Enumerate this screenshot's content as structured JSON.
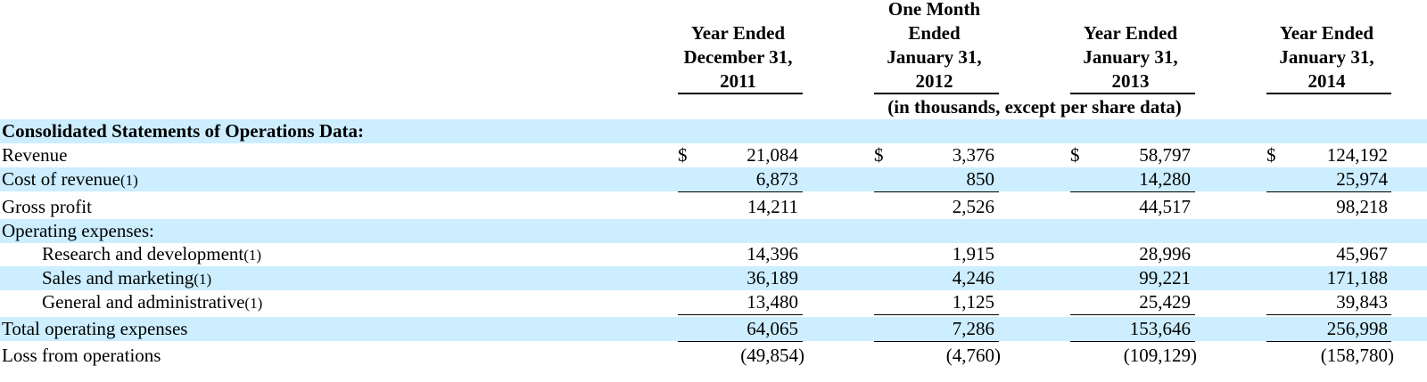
{
  "header": {
    "columns": [
      {
        "lines": [
          "Year Ended",
          "December 31,",
          "2011"
        ]
      },
      {
        "lines": [
          "One Month",
          "Ended",
          "January 31,",
          "2012"
        ]
      },
      {
        "lines": [
          "Year Ended",
          "January 31,",
          "2013"
        ]
      },
      {
        "lines": [
          "Year Ended",
          "January 31,",
          "2014"
        ]
      }
    ],
    "units_note": "(in thousands, except per share data)"
  },
  "table": {
    "section_title": "Consolidated Statements of Operations Data:",
    "currency_symbol": "$",
    "rows": [
      {
        "label": "Revenue",
        "footnote": "",
        "values": [
          "21,084",
          "3,376",
          "58,797",
          "124,192"
        ]
      },
      {
        "label": "Cost of revenue",
        "footnote": "(1)",
        "values": [
          "6,873",
          "850",
          "14,280",
          "25,974"
        ]
      },
      {
        "label": "Gross profit",
        "footnote": "",
        "values": [
          "14,211",
          "2,526",
          "44,517",
          "98,218"
        ]
      },
      {
        "label": "Operating expenses:",
        "footnote": "",
        "values": [
          "",
          "",
          "",
          ""
        ]
      },
      {
        "label": "Research and development",
        "footnote": "(1)",
        "values": [
          "14,396",
          "1,915",
          "28,996",
          "45,967"
        ]
      },
      {
        "label": "Sales and marketing",
        "footnote": "(1)",
        "values": [
          "36,189",
          "4,246",
          "99,221",
          "171,188"
        ]
      },
      {
        "label": "General and administrative",
        "footnote": "(1)",
        "values": [
          "13,480",
          "1,125",
          "25,429",
          "39,843"
        ]
      },
      {
        "label": "Total operating expenses",
        "footnote": "",
        "values": [
          "64,065",
          "7,286",
          "153,646",
          "256,998"
        ]
      },
      {
        "label": "Loss from operations",
        "footnote": "",
        "values": [
          "(49,854)",
          "(4,760)",
          "(109,129)",
          "(158,780)"
        ]
      }
    ]
  }
}
